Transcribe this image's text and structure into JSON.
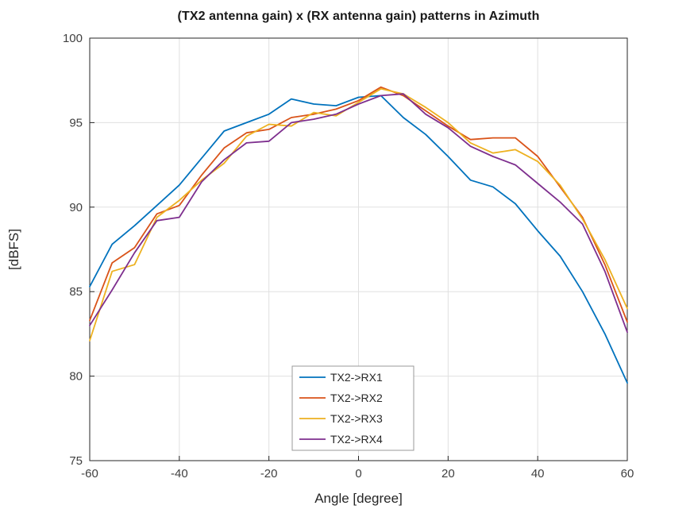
{
  "figure": {
    "title": "(TX2 antenna gain) x (RX antenna gain) patterns in Azimuth",
    "xlabel": "Angle [degree]",
    "ylabel": "[dBFS]"
  },
  "chart_data": {
    "type": "line",
    "title": "(TX2 antenna gain) x (RX antenna gain) patterns in Azimuth",
    "xlabel": "Angle [degree]",
    "ylabel": "[dBFS]",
    "xlim": [
      -60,
      60
    ],
    "ylim": [
      75,
      100
    ],
    "xticks": [
      -60,
      -40,
      -20,
      0,
      20,
      40,
      60
    ],
    "yticks": [
      75,
      80,
      85,
      90,
      95,
      100
    ],
    "grid": true,
    "legend_position": "inside-lower-center",
    "x": [
      -60,
      -55,
      -50,
      -45,
      -40,
      -35,
      -30,
      -25,
      -20,
      -15,
      -10,
      -5,
      0,
      5,
      10,
      15,
      20,
      25,
      30,
      35,
      40,
      45,
      50,
      55,
      60
    ],
    "series": [
      {
        "name": "TX2->RX1",
        "color": "#0072BD",
        "values": [
          85.3,
          87.8,
          88.9,
          90.1,
          91.3,
          92.9,
          94.5,
          95.0,
          95.5,
          96.4,
          96.1,
          96.0,
          96.5,
          96.6,
          95.3,
          94.3,
          93.0,
          91.6,
          91.2,
          90.2,
          88.6,
          87.1,
          85.0,
          82.5,
          79.6
        ]
      },
      {
        "name": "TX2->RX2",
        "color": "#D95319",
        "values": [
          83.3,
          86.7,
          87.6,
          89.6,
          90.1,
          91.9,
          93.5,
          94.4,
          94.6,
          95.3,
          95.5,
          95.8,
          96.3,
          97.1,
          96.6,
          95.7,
          94.8,
          94.0,
          94.1,
          94.1,
          93.0,
          91.2,
          89.4,
          86.6,
          83.2
        ]
      },
      {
        "name": "TX2->RX3",
        "color": "#EDB120",
        "values": [
          82.1,
          86.2,
          86.6,
          89.4,
          90.4,
          91.6,
          92.6,
          94.2,
          94.9,
          94.8,
          95.6,
          95.4,
          96.2,
          97.0,
          96.7,
          95.9,
          95.0,
          93.8,
          93.2,
          93.4,
          92.7,
          91.3,
          89.3,
          86.9,
          84.0
        ]
      },
      {
        "name": "TX2->RX4",
        "color": "#7E2F8E",
        "values": [
          83.0,
          85.1,
          87.3,
          89.2,
          89.4,
          91.5,
          92.8,
          93.8,
          93.9,
          95.0,
          95.2,
          95.5,
          96.1,
          96.6,
          96.7,
          95.5,
          94.7,
          93.6,
          93.0,
          92.5,
          91.4,
          90.3,
          89.0,
          86.2,
          82.6
        ]
      }
    ]
  },
  "style": {
    "grid_color": "#e0e0e0",
    "axis_color": "#262626",
    "tick_label_color": "#404040",
    "legend_border_color": "#9a9a9a",
    "background": "#ffffff"
  }
}
